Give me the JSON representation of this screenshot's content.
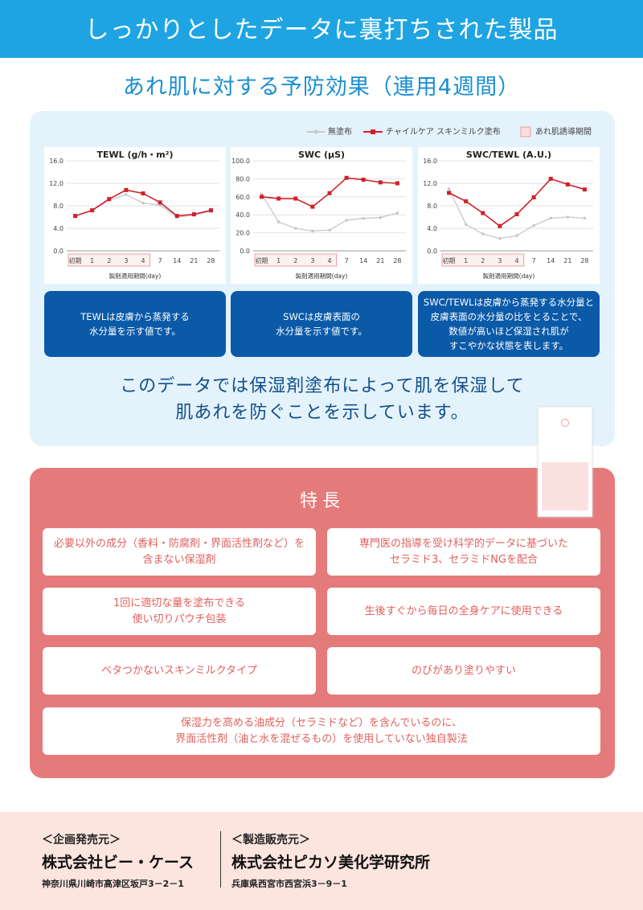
{
  "header": {
    "title": "しっかりとしたデータに裏打ちされた製品"
  },
  "section_title": "あれ肌に対する予防効果（連用4週間）",
  "chart_data": [
    {
      "type": "line",
      "title": "TEWL (g/h・m²)",
      "x_label": "製剤適用期間(day)",
      "shade_label": "あれ肌誘導期間",
      "categories": [
        "初期",
        "1",
        "2",
        "3",
        "4",
        "7",
        "14",
        "21",
        "28"
      ],
      "series": [
        {
          "name": "無塗布",
          "color": "#c8c8c8",
          "values": [
            6.2,
            7.2,
            9.0,
            10.0,
            8.5,
            8.1,
            6.0,
            6.3,
            7.0
          ]
        },
        {
          "name": "チャイルケア スキンミルク塗布",
          "color": "#d0202a",
          "values": [
            6.2,
            7.2,
            9.2,
            10.8,
            10.2,
            8.6,
            6.2,
            6.5,
            7.2
          ]
        }
      ],
      "ylim": [
        0,
        16
      ],
      "yticks": [
        {
          "value": 0,
          "label": "0.0"
        },
        {
          "value": 4,
          "label": "4.0"
        },
        {
          "value": 8,
          "label": "8.0"
        },
        {
          "value": 12,
          "label": "12.0"
        },
        {
          "value": 16,
          "label": "16.0"
        }
      ],
      "grid": true
    },
    {
      "type": "line",
      "title": "SWC (μS)",
      "x_label": "製剤適用期間(day)",
      "categories": [
        "初期",
        "1",
        "2",
        "3",
        "4",
        "7",
        "14",
        "21",
        "28"
      ],
      "series": [
        {
          "name": "無塗布",
          "color": "#c8c8c8",
          "values": [
            63,
            32,
            25,
            22,
            23,
            34,
            36,
            37,
            42
          ]
        },
        {
          "name": "チャイルケア スキンミルク塗布",
          "color": "#d0202a",
          "values": [
            60,
            58,
            58,
            49,
            64,
            81,
            79,
            76,
            75
          ]
        }
      ],
      "ylim": [
        0,
        100
      ],
      "yticks": [
        {
          "value": 0,
          "label": "0.0"
        },
        {
          "value": 20,
          "label": "20.0"
        },
        {
          "value": 40,
          "label": "40.0"
        },
        {
          "value": 60,
          "label": "60.0"
        },
        {
          "value": 80,
          "label": "80.0"
        },
        {
          "value": 100,
          "label": "100.0"
        }
      ],
      "grid": true
    },
    {
      "type": "line",
      "title": "SWC/TEWL (A.U.)",
      "x_label": "製剤適用期間(day)",
      "categories": [
        "初期",
        "1",
        "2",
        "3",
        "4",
        "7",
        "14",
        "21",
        "28"
      ],
      "series": [
        {
          "name": "無塗布",
          "color": "#c8c8c8",
          "values": [
            11.0,
            4.7,
            3.0,
            2.2,
            2.7,
            4.5,
            5.8,
            6.0,
            5.8
          ]
        },
        {
          "name": "チャイルケア スキンミルク塗布",
          "color": "#d0202a",
          "values": [
            10.3,
            8.8,
            6.7,
            4.4,
            6.5,
            9.5,
            12.8,
            11.8,
            10.9
          ]
        }
      ],
      "ylim": [
        0,
        16
      ],
      "yticks": [
        {
          "value": 0,
          "label": "0.0"
        },
        {
          "value": 4,
          "label": "4.0"
        },
        {
          "value": 8,
          "label": "8.0"
        },
        {
          "value": 12,
          "label": "12.0"
        },
        {
          "value": 16,
          "label": "16.0"
        }
      ],
      "grid": true
    }
  ],
  "info_boxes": [
    [
      "TEWLは皮膚から蒸発する",
      "水分量を示す値です。"
    ],
    [
      "SWCは皮膚表面の",
      "水分量を示す値です。"
    ],
    [
      "SWC/TEWLは皮膚から蒸発する水分量と",
      "皮膚表面の水分量の比をとることで、",
      "数値が高いほど保湿され肌が",
      "すこやかな状態を表します。"
    ]
  ],
  "conclusion": [
    "このデータでは保湿剤塗布によって肌を保湿して",
    "肌あれを防ぐことを示しています。"
  ],
  "features": {
    "title": "特長",
    "items": [
      [
        "必要以外の成分（香料・防腐剤・界面活性剤など）を",
        "含まない保湿剤"
      ],
      [
        "専門医の指導を受け科学的データに基づいた",
        "セラミド3、セラミドNGを配合"
      ],
      [
        "1回に適切な量を塗布できる",
        "使い切りパウチ包装"
      ],
      [
        "生後すぐから毎日の全身ケアに使用できる"
      ],
      [
        "ベタつかないスキンミルクタイプ"
      ],
      [
        "のびがあり塗りやすい"
      ],
      [
        "保湿力を高める油成分（セラミドなど）を含んでいるのに、",
        "界面活性剤（油と水を混ぜるもの）を使用していない独自製法"
      ]
    ]
  },
  "footer": {
    "planner": {
      "label": "＜企画発売元＞",
      "company": "株式会社ビー・ケース",
      "address": "神奈川県川崎市高津区坂戸3－2－1"
    },
    "manufacturer": {
      "label": "＜製造販売元＞",
      "company": "株式会社ピカソ美化学研究所",
      "address": "兵庫県西宮市西宮浜3－9－1"
    }
  }
}
